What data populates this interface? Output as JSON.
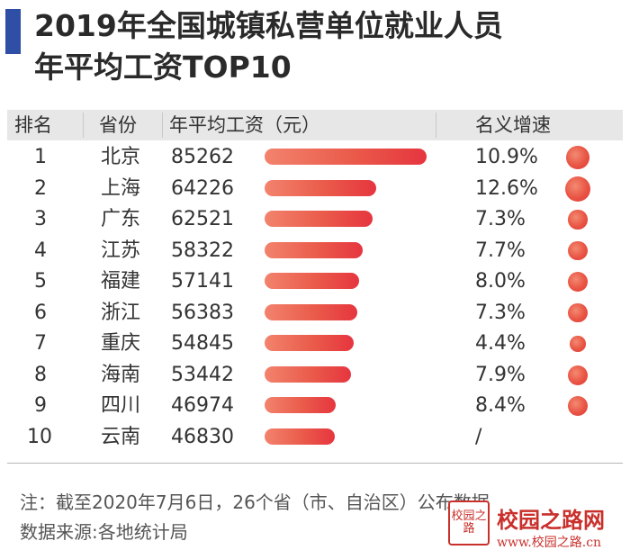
{
  "title_line1": "2019年全国城镇私营单位就业人员",
  "title_line2": "年平均工资TOP10",
  "headers": {
    "rank": "排名",
    "province": "省份",
    "wage": "年平均工资（元）",
    "growth": "名义增速"
  },
  "chart_data": {
    "type": "bar",
    "title": "2019年全国城镇私营单位就业人员年平均工资TOP10",
    "ranks": [
      "1",
      "2",
      "3",
      "4",
      "5",
      "6",
      "7",
      "8",
      "9",
      "10"
    ],
    "categories": [
      "北京",
      "上海",
      "广东",
      "江苏",
      "福建",
      "浙江",
      "重庆",
      "海南",
      "四川",
      "云南"
    ],
    "values": [
      85262,
      64226,
      62521,
      58322,
      57141,
      56383,
      54845,
      53442,
      46974,
      46830
    ],
    "value_labels": [
      "85262",
      "64226",
      "62521",
      "58322",
      "57141",
      "56383",
      "54845",
      "53442",
      "46974",
      "46830"
    ],
    "growth_labels": [
      "10.9%",
      "12.6%",
      "7.3%",
      "7.7%",
      "8.0%",
      "7.3%",
      "4.4%",
      "7.9%",
      "8.4%",
      "/"
    ],
    "growth": [
      10.9,
      12.6,
      7.3,
      7.7,
      8.0,
      7.3,
      4.4,
      7.9,
      8.4,
      null
    ],
    "colors": {
      "bar_start": "#f2836d",
      "bar_end": "#e6353f",
      "dot": "#e95443",
      "header_bg": "#e7e7e7",
      "accent": "#2f4fa6"
    }
  },
  "note_line1": "注：截至2020年7月6日，26个省（市、自治区）公布数据",
  "note_line2": "数据来源:各地统计局",
  "watermark": {
    "seal_text": "校园之路",
    "name": "校园之路网",
    "url": "www.校园之路.cn",
    "color": "#c9302c"
  }
}
